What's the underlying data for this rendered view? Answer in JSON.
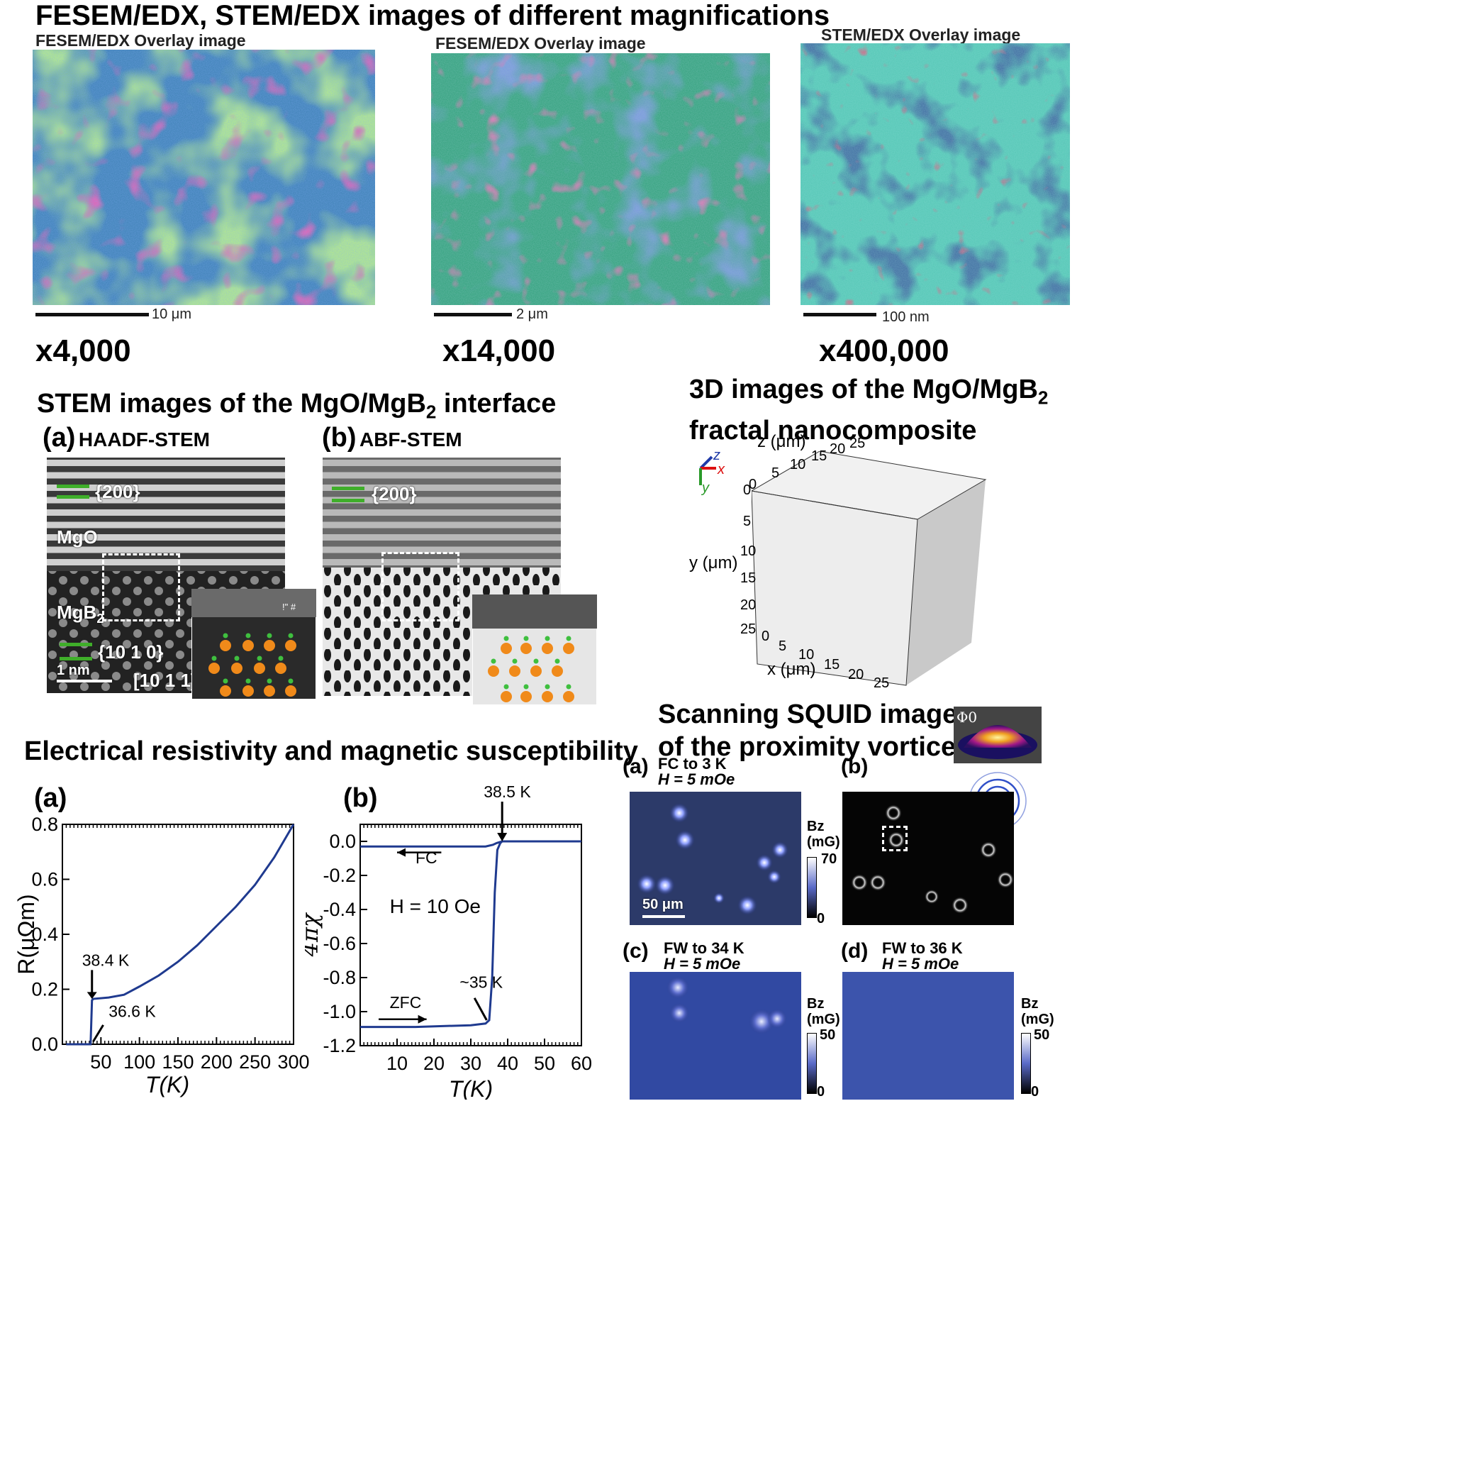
{
  "header": {
    "title": "FESEM/EDX, STEM/EDX images of different magnifications"
  },
  "edx_panels": [
    {
      "caption": "FESEM/EDX Overlay image",
      "scale": "10 μm",
      "magnification": "x4,000"
    },
    {
      "caption": "FESEM/EDX Overlay image",
      "scale": "2 μm",
      "magnification": "x14,000"
    },
    {
      "caption": "STEM/EDX Overlay image",
      "scale": "100 nm",
      "magnification": "x400,000"
    }
  ],
  "stem_section": {
    "title": "STEM images of the MgO/MgB",
    "title_sub": "2",
    "title_end": " interface",
    "a_label": "(a)",
    "a_name": "HAADF-STEM",
    "b_label": "(b)",
    "b_name": "ABF-STEM",
    "plane_200": "{200}",
    "mgo": "MgO",
    "mgb2": "MgB",
    "mgb2_sub": "2",
    "plane_1010": "{10 1 0}",
    "scale": "1 nm",
    "zone": "[10 1 1]",
    "inset_marks": "!\"\n#"
  },
  "cube_section": {
    "title_line1": "3D images of the MgO/MgB",
    "title_sub": "2",
    "title_line2": "fractal nanocomposite",
    "z_label": "z (μm)",
    "y_label": "y (μm)",
    "x_label": "x (μm)",
    "z_ticks": [
      "0",
      "5",
      "10",
      "15",
      "20",
      "25"
    ],
    "y_ticks": [
      "0",
      "5",
      "10",
      "15",
      "20",
      "25"
    ],
    "x_ticks": [
      "0",
      "5",
      "10",
      "15",
      "20",
      "25"
    ],
    "axes": {
      "z": "z",
      "x": "x",
      "y": "y"
    }
  },
  "squid_section": {
    "title_line1": "Scanning SQUID images",
    "title_line2": "of the proximity vortices",
    "phi": "Φ0",
    "panels": [
      {
        "label": "(a)",
        "line1": "FC to 3 K",
        "line2": "H = 5 mOe",
        "cb_unit": "Bz\n(mG)",
        "cb_max": "70",
        "cb_min": "0",
        "scale": "50 μm"
      },
      {
        "label": "(b)"
      },
      {
        "label": "(c)",
        "line1": "FW to 34 K",
        "line2": "H = 5 mOe",
        "cb_unit": "Bz\n(mG)",
        "cb_max": "50",
        "cb_min": "0"
      },
      {
        "label": "(d)",
        "line1": "FW to 36 K",
        "line2": "H = 5 mOe",
        "cb_unit": "Bz\n(mG)",
        "cb_max": "50",
        "cb_min": "0"
      }
    ]
  },
  "resistivity_section": {
    "title": "Electrical resistivity and magnetic susceptibility"
  },
  "chart_data": [
    {
      "type": "line",
      "panel": "(a)",
      "xlabel": "T(K)",
      "ylabel": "R(μΩm)",
      "xlim": [
        0,
        300
      ],
      "ylim": [
        0,
        0.8
      ],
      "x_ticks": [
        "50",
        "100",
        "150",
        "200",
        "250",
        "300"
      ],
      "y_ticks": [
        "0.0",
        "0.2",
        "0.4",
        "0.6",
        "0.8"
      ],
      "series": [
        {
          "color": "#1f3a8f",
          "x": [
            5,
            36.6,
            38.4,
            40,
            60,
            80,
            100,
            125,
            150,
            175,
            200,
            225,
            250,
            275,
            300
          ],
          "y": [
            0.0,
            0.0,
            0.16,
            0.165,
            0.17,
            0.18,
            0.21,
            0.25,
            0.3,
            0.36,
            0.43,
            0.5,
            0.58,
            0.68,
            0.8
          ]
        }
      ],
      "annotations": [
        "38.4 K",
        "36.6 K"
      ]
    },
    {
      "type": "line",
      "panel": "(b)",
      "xlabel": "T(K)",
      "ylabel": "4πχ",
      "xlim": [
        0,
        60
      ],
      "ylim": [
        -1.2,
        0.1
      ],
      "x_ticks": [
        "10",
        "20",
        "30",
        "40",
        "50",
        "60"
      ],
      "y_ticks": [
        "0.0",
        "-0.2",
        "-0.4",
        "-0.6",
        "-0.8",
        "-1.0",
        "-1.2"
      ],
      "series": [
        {
          "name": "FC",
          "color": "#1f3a8f",
          "x": [
            0,
            20,
            34,
            36,
            37,
            38.5,
            45,
            60
          ],
          "y": [
            -0.03,
            -0.03,
            -0.03,
            -0.02,
            -0.01,
            0.0,
            0.0,
            0.0
          ]
        },
        {
          "name": "ZFC",
          "color": "#1f3a8f",
          "x": [
            0,
            15,
            30,
            34,
            35,
            35.8,
            36.5,
            37.2,
            38,
            38.5,
            45,
            60
          ],
          "y": [
            -1.09,
            -1.09,
            -1.08,
            -1.07,
            -1.05,
            -0.8,
            -0.3,
            -0.05,
            -0.01,
            0.0,
            0.0,
            0.0
          ]
        }
      ],
      "annotations": [
        "38.5 K",
        "FC",
        "H = 10 Oe",
        "~35 K",
        "ZFC"
      ]
    }
  ]
}
